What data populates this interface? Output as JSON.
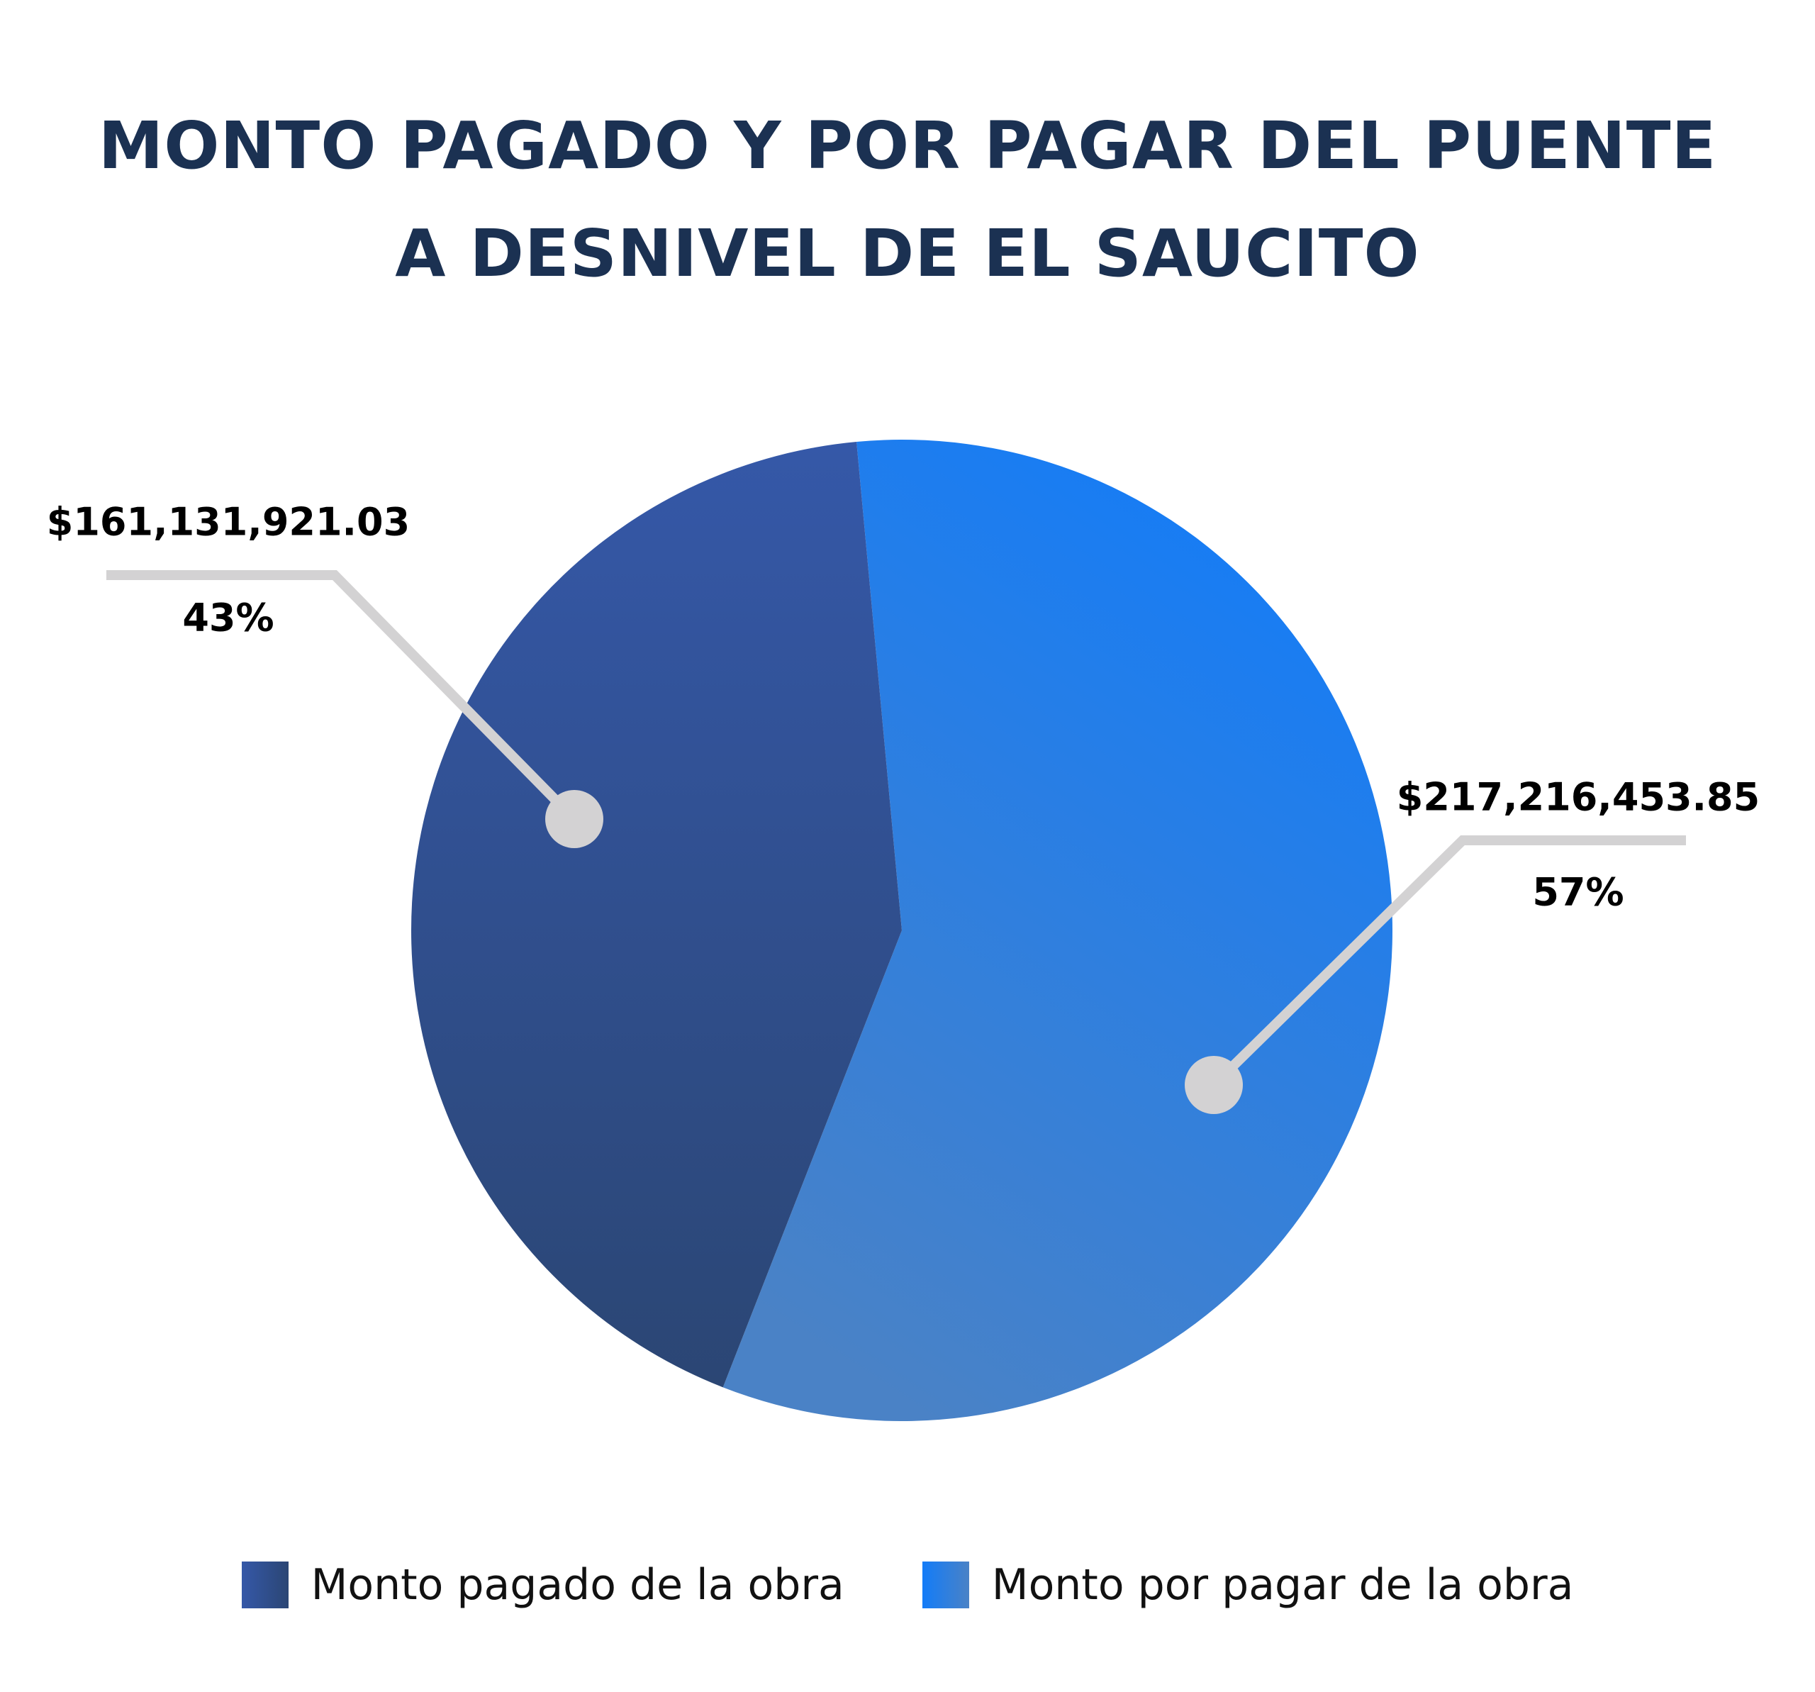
{
  "chart_data": {
    "type": "pie",
    "title_lines": [
      "MONTO PAGADO Y POR PAGAR DEL PUENTE",
      "A DESNIVEL DE EL SAUCITO"
    ],
    "slices": [
      {
        "name": "Monto pagado de la obra",
        "value": 161131921.03,
        "value_label": "$161,131,921.03",
        "percent": 43,
        "percent_label": "43%",
        "color_start": "#3558a8",
        "color_end": "#2b4674"
      },
      {
        "name": "Monto por pagar de la obra",
        "value": 217216453.85,
        "value_label": "$217,216,453.85",
        "percent": 57,
        "percent_label": "57%",
        "color_start": "#137cf8",
        "color_end": "#4a82c6"
      }
    ],
    "legend_position": "bottom",
    "leader_line_color": "#d3d2d3",
    "title_color": "#1b3152"
  }
}
